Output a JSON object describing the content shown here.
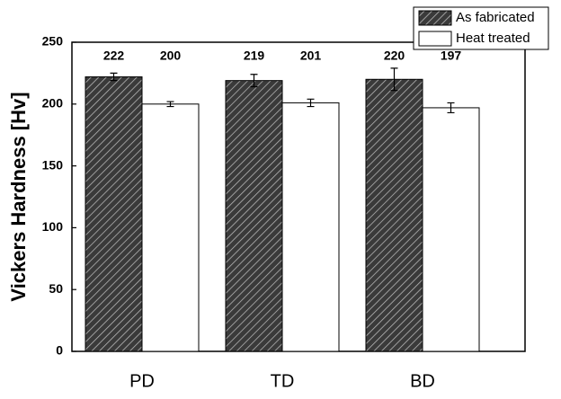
{
  "chart_data": {
    "type": "bar",
    "y_label": "Vickers Hardness [Hv]",
    "categories": [
      "PD",
      "TD",
      "BD"
    ],
    "series": [
      {
        "name": "As fabricated",
        "color": "#3a3a3a",
        "hatch": "diagonal",
        "values": [
          222,
          219,
          220
        ],
        "errors": [
          3,
          5,
          9
        ]
      },
      {
        "name": "Heat treated",
        "color": "#ffffff",
        "values": [
          200,
          201,
          197
        ],
        "errors": [
          2,
          3,
          4
        ]
      }
    ],
    "ylim": [
      0,
      250
    ],
    "yticks": [
      0,
      50,
      100,
      150,
      200,
      250
    ],
    "grid": false,
    "legend": "top-right"
  }
}
